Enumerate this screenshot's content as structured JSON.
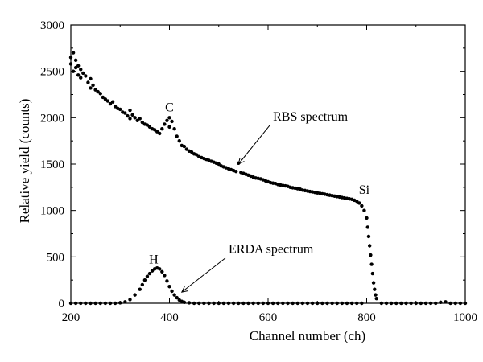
{
  "chart_data": {
    "type": "scatter",
    "xlabel": "Channel number (ch)",
    "ylabel": "Relative yield (counts)",
    "xlim": [
      200,
      1000
    ],
    "ylim": [
      0,
      3000
    ],
    "xticks": [
      200,
      400,
      600,
      800,
      1000
    ],
    "yticks": [
      0,
      500,
      1000,
      1500,
      2000,
      2500,
      3000
    ],
    "grid": false,
    "series": [
      {
        "name": "RBS spectrum",
        "color": "#000000",
        "points": [
          [
            200,
            2650
          ],
          [
            200,
            2580
          ],
          [
            205,
            2700
          ],
          [
            205,
            2500
          ],
          [
            210,
            2620
          ],
          [
            210,
            2540
          ],
          [
            215,
            2560
          ],
          [
            215,
            2460
          ],
          [
            220,
            2520
          ],
          [
            220,
            2430
          ],
          [
            225,
            2480
          ],
          [
            230,
            2450
          ],
          [
            235,
            2380
          ],
          [
            240,
            2420
          ],
          [
            240,
            2320
          ],
          [
            245,
            2350
          ],
          [
            250,
            2300
          ],
          [
            255,
            2280
          ],
          [
            260,
            2260
          ],
          [
            265,
            2220
          ],
          [
            270,
            2200
          ],
          [
            275,
            2180
          ],
          [
            280,
            2150
          ],
          [
            285,
            2170
          ],
          [
            290,
            2120
          ],
          [
            295,
            2100
          ],
          [
            300,
            2090
          ],
          [
            305,
            2060
          ],
          [
            310,
            2050
          ],
          [
            315,
            2020
          ],
          [
            320,
            2080
          ],
          [
            320,
            1990
          ],
          [
            325,
            2030
          ],
          [
            330,
            2000
          ],
          [
            335,
            1970
          ],
          [
            340,
            1990
          ],
          [
            345,
            1950
          ],
          [
            350,
            1930
          ],
          [
            355,
            1920
          ],
          [
            360,
            1900
          ],
          [
            365,
            1880
          ],
          [
            370,
            1870
          ],
          [
            375,
            1850
          ],
          [
            380,
            1830
          ],
          [
            385,
            1880
          ],
          [
            390,
            1930
          ],
          [
            395,
            1970
          ],
          [
            400,
            2000
          ],
          [
            400,
            1900
          ],
          [
            405,
            1960
          ],
          [
            410,
            1880
          ],
          [
            415,
            1800
          ],
          [
            420,
            1750
          ],
          [
            425,
            1700
          ],
          [
            430,
            1690
          ],
          [
            435,
            1660
          ],
          [
            440,
            1640
          ],
          [
            445,
            1630
          ],
          [
            450,
            1610
          ],
          [
            455,
            1600
          ],
          [
            460,
            1580
          ],
          [
            465,
            1570
          ],
          [
            470,
            1560
          ],
          [
            475,
            1550
          ],
          [
            480,
            1540
          ],
          [
            485,
            1530
          ],
          [
            490,
            1520
          ],
          [
            495,
            1510
          ],
          [
            500,
            1500
          ],
          [
            505,
            1480
          ],
          [
            510,
            1470
          ],
          [
            515,
            1460
          ],
          [
            520,
            1450
          ],
          [
            525,
            1440
          ],
          [
            530,
            1430
          ],
          [
            535,
            1420
          ],
          [
            540,
            1510
          ],
          [
            545,
            1410
          ],
          [
            550,
            1400
          ],
          [
            555,
            1390
          ],
          [
            560,
            1380
          ],
          [
            565,
            1370
          ],
          [
            570,
            1360
          ],
          [
            575,
            1350
          ],
          [
            580,
            1345
          ],
          [
            585,
            1340
          ],
          [
            590,
            1330
          ],
          [
            595,
            1320
          ],
          [
            600,
            1310
          ],
          [
            605,
            1300
          ],
          [
            610,
            1295
          ],
          [
            615,
            1290
          ],
          [
            620,
            1280
          ],
          [
            625,
            1275
          ],
          [
            630,
            1270
          ],
          [
            635,
            1265
          ],
          [
            640,
            1260
          ],
          [
            645,
            1250
          ],
          [
            650,
            1245
          ],
          [
            655,
            1240
          ],
          [
            660,
            1235
          ],
          [
            665,
            1230
          ],
          [
            670,
            1220
          ],
          [
            675,
            1215
          ],
          [
            680,
            1210
          ],
          [
            685,
            1205
          ],
          [
            690,
            1200
          ],
          [
            695,
            1195
          ],
          [
            700,
            1190
          ],
          [
            705,
            1185
          ],
          [
            710,
            1180
          ],
          [
            715,
            1175
          ],
          [
            720,
            1170
          ],
          [
            725,
            1165
          ],
          [
            730,
            1160
          ],
          [
            735,
            1155
          ],
          [
            740,
            1150
          ],
          [
            745,
            1145
          ],
          [
            750,
            1140
          ],
          [
            755,
            1135
          ],
          [
            760,
            1130
          ],
          [
            765,
            1125
          ],
          [
            770,
            1120
          ],
          [
            775,
            1110
          ],
          [
            780,
            1100
          ],
          [
            785,
            1080
          ],
          [
            790,
            1050
          ],
          [
            795,
            1000
          ],
          [
            800,
            920
          ],
          [
            802,
            820
          ],
          [
            804,
            720
          ],
          [
            806,
            620
          ],
          [
            808,
            520
          ],
          [
            810,
            420
          ],
          [
            812,
            320
          ],
          [
            814,
            220
          ],
          [
            816,
            150
          ],
          [
            818,
            90
          ],
          [
            820,
            50
          ]
        ]
      },
      {
        "name": "ERDA spectrum",
        "color": "#000000",
        "points": [
          [
            200,
            0
          ],
          [
            210,
            0
          ],
          [
            220,
            0
          ],
          [
            230,
            0
          ],
          [
            240,
            0
          ],
          [
            250,
            0
          ],
          [
            260,
            0
          ],
          [
            270,
            0
          ],
          [
            280,
            0
          ],
          [
            290,
            0
          ],
          [
            300,
            5
          ],
          [
            310,
            15
          ],
          [
            320,
            40
          ],
          [
            330,
            90
          ],
          [
            340,
            150
          ],
          [
            345,
            200
          ],
          [
            350,
            250
          ],
          [
            355,
            290
          ],
          [
            360,
            320
          ],
          [
            365,
            350
          ],
          [
            370,
            370
          ],
          [
            375,
            380
          ],
          [
            380,
            370
          ],
          [
            385,
            340
          ],
          [
            390,
            300
          ],
          [
            395,
            240
          ],
          [
            400,
            180
          ],
          [
            405,
            130
          ],
          [
            410,
            90
          ],
          [
            415,
            60
          ],
          [
            420,
            35
          ],
          [
            425,
            20
          ],
          [
            430,
            10
          ],
          [
            440,
            5
          ],
          [
            450,
            0
          ],
          [
            460,
            0
          ],
          [
            470,
            0
          ],
          [
            480,
            0
          ],
          [
            490,
            0
          ],
          [
            500,
            0
          ],
          [
            510,
            0
          ],
          [
            520,
            0
          ],
          [
            530,
            0
          ],
          [
            540,
            0
          ],
          [
            550,
            0
          ],
          [
            560,
            0
          ],
          [
            570,
            0
          ],
          [
            580,
            0
          ],
          [
            590,
            0
          ],
          [
            600,
            0
          ],
          [
            610,
            0
          ],
          [
            620,
            0
          ],
          [
            630,
            0
          ],
          [
            640,
            0
          ],
          [
            650,
            0
          ],
          [
            660,
            0
          ],
          [
            670,
            0
          ],
          [
            680,
            0
          ],
          [
            690,
            0
          ],
          [
            700,
            0
          ],
          [
            710,
            0
          ],
          [
            720,
            0
          ],
          [
            730,
            0
          ],
          [
            740,
            0
          ],
          [
            750,
            0
          ],
          [
            760,
            0
          ],
          [
            770,
            0
          ],
          [
            780,
            0
          ],
          [
            790,
            0
          ],
          [
            830,
            0
          ],
          [
            840,
            0
          ],
          [
            850,
            0
          ],
          [
            860,
            0
          ],
          [
            870,
            0
          ],
          [
            880,
            0
          ],
          [
            890,
            0
          ],
          [
            900,
            0
          ],
          [
            910,
            0
          ],
          [
            920,
            0
          ],
          [
            930,
            0
          ],
          [
            940,
            0
          ],
          [
            950,
            10
          ],
          [
            960,
            15
          ],
          [
            970,
            0
          ],
          [
            980,
            0
          ],
          [
            990,
            0
          ],
          [
            1000,
            0
          ]
        ]
      }
    ],
    "annotations": [
      {
        "text": "C",
        "x": 400,
        "y": 2070
      },
      {
        "text": "Si",
        "x": 795,
        "y": 1180
      },
      {
        "text": "H",
        "x": 368,
        "y": 430
      },
      {
        "text": "RBS spectrum",
        "x": 610,
        "y": 1970,
        "arrow_to": [
          540,
          1500
        ]
      },
      {
        "text": "ERDA spectrum",
        "x": 520,
        "y": 540,
        "arrow_to": [
          425,
          120
        ]
      }
    ]
  }
}
